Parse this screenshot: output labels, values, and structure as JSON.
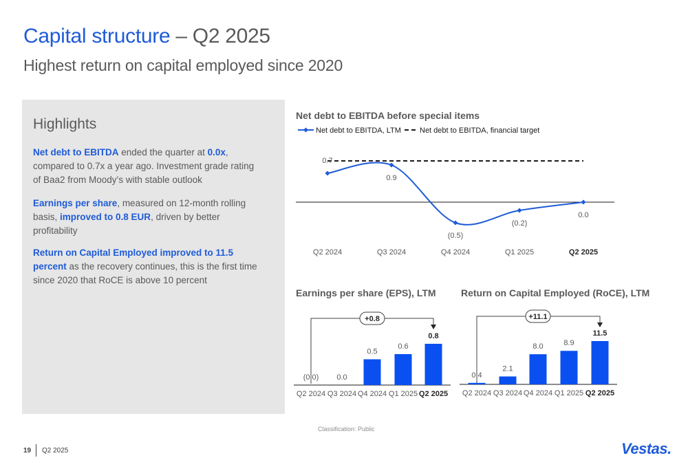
{
  "header": {
    "title_main": "Capital structure",
    "title_sep": " – ",
    "title_period": "Q2 2025",
    "subtitle": "Highest return on capital employed since 2020"
  },
  "highlights": {
    "title": "Highlights",
    "p1": {
      "b1": "Net debt to EBITDA",
      "t1": " ended the quarter at ",
      "b2": "0.0x",
      "t2": ", compared to 0.7x a year ago. Investment grade rating of Baa2 from Moody’s with stable outlook"
    },
    "p2": {
      "b1": "Earnings per share",
      "t1": ", measured on 12-month rolling basis, ",
      "b2": "improved to 0.8 EUR",
      "t2": ", driven by better profitability"
    },
    "p3": {
      "b1": "Return on Capital Employed improved to 11.5 percent",
      "t1": " as the recovery continues, this is the first time since 2020 that RoCE is above 10 percent"
    }
  },
  "chart_data": [
    {
      "type": "line",
      "title": "Net debt to EBITDA before special items",
      "categories": [
        "Q2 2024",
        "Q3 2024",
        "Q4 2024",
        "Q1 2025",
        "Q2 2025"
      ],
      "series": [
        {
          "name": "Net debt to EBITDA, LTM",
          "values": [
            0.7,
            0.9,
            -0.5,
            -0.2,
            0.0
          ],
          "labels": [
            "0.7",
            "0.9",
            "(0.5)",
            "(0.2)",
            "0.0"
          ],
          "color": "#1e5bd7"
        },
        {
          "name": "Net debt to EBITDA, financial target",
          "values": [
            1.0,
            1.0,
            1.0,
            1.0,
            1.0
          ],
          "style": "dashed",
          "color": "#1a1a1a"
        }
      ],
      "ylim": [
        -0.8,
        1.3
      ],
      "bold_last_category": true
    },
    {
      "type": "bar",
      "title": "Earnings per share (EPS), LTM",
      "categories": [
        "Q2 2024",
        "Q3 2024",
        "Q4 2024",
        "Q1 2025",
        "Q2 2025"
      ],
      "values": [
        0.0,
        0.0,
        0.5,
        0.6,
        0.8
      ],
      "labels": [
        "(0.0)",
        "0.0",
        "0.5",
        "0.6",
        "0.8"
      ],
      "ylim": [
        0,
        0.8
      ],
      "change_label": "+0.8",
      "color": "#0a50f0"
    },
    {
      "type": "bar",
      "title": "Return on Capital Employed (RoCE), LTM",
      "categories": [
        "Q2 2024",
        "Q3 2024",
        "Q4 2024",
        "Q1 2025",
        "Q2 2025"
      ],
      "values": [
        0.4,
        2.1,
        8.0,
        8.9,
        11.5
      ],
      "labels": [
        "0.4",
        "2.1",
        "8.0",
        "8.9",
        "11.5"
      ],
      "ylim": [
        0,
        11.5
      ],
      "change_label": "+11.1",
      "color": "#0a50f0"
    }
  ],
  "footer": {
    "classification": "Classification: Public",
    "page_number": "19",
    "period": "Q2 2025",
    "logo": "Vestas."
  }
}
